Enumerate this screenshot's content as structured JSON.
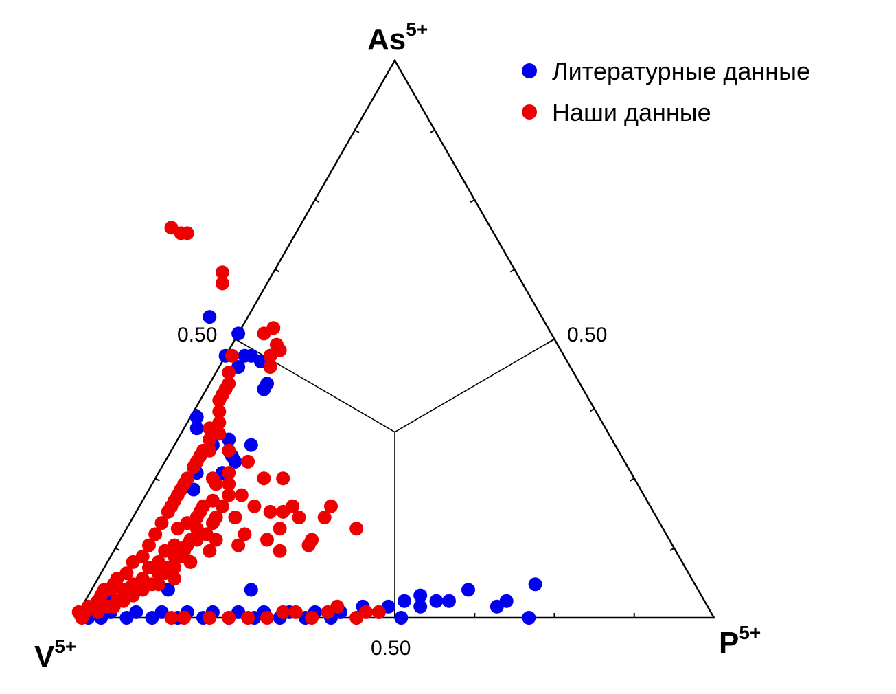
{
  "chart_data": {
    "type": "scatter",
    "subtype": "ternary",
    "title": "",
    "vertices": {
      "top": {
        "base": "As",
        "charge": "5+"
      },
      "left": {
        "base": "V",
        "charge": "5+"
      },
      "right": {
        "base": "P",
        "charge": "5+"
      }
    },
    "tick_labels": {
      "left_edge": "0.50",
      "right_edge": "0.50",
      "bottom_edge": "0.50"
    },
    "ticks_per_edge": 8,
    "grid": false,
    "boundary_lines": true,
    "legend_position": "top-right",
    "series": [
      {
        "name": "Литературные данные",
        "color": "#0000ee",
        "points": [
          [
            0.98,
            0.0
          ],
          [
            0.96,
            0.0
          ],
          [
            0.94,
            0.01
          ],
          [
            0.92,
            0.0
          ],
          [
            0.9,
            0.01
          ],
          [
            0.88,
            0.0
          ],
          [
            0.86,
            0.01
          ],
          [
            0.84,
            0.0
          ],
          [
            0.82,
            0.01
          ],
          [
            0.8,
            0.0
          ],
          [
            0.78,
            0.01
          ],
          [
            0.76,
            0.0
          ],
          [
            0.74,
            0.01
          ],
          [
            0.72,
            0.0
          ],
          [
            0.7,
            0.01
          ],
          [
            0.68,
            0.0
          ],
          [
            0.66,
            0.01
          ],
          [
            0.64,
            0.0
          ],
          [
            0.62,
            0.01
          ],
          [
            0.6,
            0.0
          ],
          [
            0.58,
            0.01
          ],
          [
            0.56,
            0.0
          ],
          [
            0.54,
            0.02
          ],
          [
            0.52,
            0.01
          ],
          [
            0.5,
            0.02
          ],
          [
            0.49,
            0.0
          ],
          [
            0.47,
            0.03
          ],
          [
            0.45,
            0.02
          ],
          [
            0.44,
            0.04
          ],
          [
            0.42,
            0.03
          ],
          [
            0.4,
            0.03
          ],
          [
            0.36,
            0.05
          ],
          [
            0.33,
            0.02
          ],
          [
            0.31,
            0.03
          ],
          [
            0.29,
            0.0
          ],
          [
            0.25,
            0.06
          ],
          [
            0.7,
            0.05
          ],
          [
            0.83,
            0.05
          ],
          [
            0.95,
            0.03
          ],
          [
            0.93,
            0.04
          ],
          [
            0.97,
            0.01
          ],
          [
            0.53,
            0.47
          ],
          [
            0.52,
            0.45
          ],
          [
            0.5,
            0.47
          ],
          [
            0.49,
            0.47
          ],
          [
            0.48,
            0.46
          ],
          [
            0.46,
            0.47
          ],
          [
            0.49,
            0.42
          ],
          [
            0.5,
            0.41
          ],
          [
            0.63,
            0.36
          ],
          [
            0.6,
            0.32
          ],
          [
            0.64,
            0.34
          ],
          [
            0.63,
            0.31
          ],
          [
            0.57,
            0.31
          ],
          [
            0.61,
            0.29
          ],
          [
            0.68,
            0.26
          ],
          [
            0.7,
            0.23
          ],
          [
            0.61,
            0.28
          ],
          [
            0.64,
            0.26
          ],
          [
            0.52,
            0.54
          ],
          [
            0.49,
            0.51
          ]
        ]
      },
      {
        "name": "Наши данные",
        "color": "#ee0000",
        "points": [
          [
            0.5,
            0.7
          ],
          [
            0.48,
            0.69
          ],
          [
            0.49,
            0.69
          ],
          [
            0.46,
            0.62
          ],
          [
            0.47,
            0.6
          ],
          [
            0.43,
            0.52
          ],
          [
            0.45,
            0.51
          ],
          [
            0.44,
            0.49
          ],
          [
            0.46,
            0.47
          ],
          [
            0.44,
            0.48
          ],
          [
            0.47,
            0.45
          ],
          [
            0.52,
            0.47
          ],
          [
            0.54,
            0.44
          ],
          [
            0.57,
            0.4
          ],
          [
            0.55,
            0.42
          ],
          [
            0.58,
            0.39
          ],
          [
            0.56,
            0.41
          ],
          [
            0.59,
            0.37
          ],
          [
            0.6,
            0.35
          ],
          [
            0.62,
            0.34
          ],
          [
            0.61,
            0.33
          ],
          [
            0.63,
            0.32
          ],
          [
            0.66,
            0.29
          ],
          [
            0.65,
            0.3
          ],
          [
            0.67,
            0.28
          ],
          [
            0.68,
            0.27
          ],
          [
            0.7,
            0.25
          ],
          [
            0.71,
            0.24
          ],
          [
            0.72,
            0.23
          ],
          [
            0.73,
            0.22
          ],
          [
            0.75,
            0.2
          ],
          [
            0.74,
            0.21
          ],
          [
            0.76,
            0.19
          ],
          [
            0.78,
            0.17
          ],
          [
            0.8,
            0.15
          ],
          [
            0.82,
            0.13
          ],
          [
            0.84,
            0.11
          ],
          [
            0.86,
            0.1
          ],
          [
            0.88,
            0.08
          ],
          [
            0.9,
            0.07
          ],
          [
            0.92,
            0.05
          ],
          [
            0.94,
            0.04
          ],
          [
            0.96,
            0.02
          ],
          [
            0.98,
            0.01
          ],
          [
            0.99,
            0.0
          ],
          [
            0.7,
            0.2
          ],
          [
            0.72,
            0.18
          ],
          [
            0.74,
            0.17
          ],
          [
            0.76,
            0.16
          ],
          [
            0.78,
            0.13
          ],
          [
            0.8,
            0.12
          ],
          [
            0.82,
            0.1
          ],
          [
            0.84,
            0.09
          ],
          [
            0.86,
            0.07
          ],
          [
            0.88,
            0.06
          ],
          [
            0.9,
            0.05
          ],
          [
            0.92,
            0.03
          ],
          [
            0.94,
            0.02
          ],
          [
            0.96,
            0.01
          ],
          [
            0.68,
            0.21
          ],
          [
            0.71,
            0.19
          ],
          [
            0.73,
            0.16
          ],
          [
            0.75,
            0.14
          ],
          [
            0.77,
            0.12
          ],
          [
            0.79,
            0.11
          ],
          [
            0.81,
            0.09
          ],
          [
            0.83,
            0.08
          ],
          [
            0.85,
            0.06
          ],
          [
            0.87,
            0.05
          ],
          [
            0.89,
            0.04
          ],
          [
            0.91,
            0.03
          ],
          [
            0.93,
            0.02
          ],
          [
            0.66,
            0.24
          ],
          [
            0.64,
            0.24
          ],
          [
            0.65,
            0.22
          ],
          [
            0.67,
            0.2
          ],
          [
            0.69,
            0.18
          ],
          [
            0.7,
            0.17
          ],
          [
            0.72,
            0.15
          ],
          [
            0.74,
            0.14
          ],
          [
            0.76,
            0.13
          ],
          [
            0.78,
            0.11
          ],
          [
            0.8,
            0.09
          ],
          [
            0.82,
            0.08
          ],
          [
            0.84,
            0.06
          ],
          [
            0.63,
            0.22
          ],
          [
            0.62,
            0.2
          ],
          [
            0.66,
            0.18
          ],
          [
            0.71,
            0.14
          ],
          [
            0.73,
            0.12
          ],
          [
            0.77,
            0.1
          ],
          [
            0.81,
            0.07
          ],
          [
            0.6,
            0.19
          ],
          [
            0.58,
            0.19
          ],
          [
            0.56,
            0.18
          ],
          [
            0.6,
            0.16
          ],
          [
            0.63,
            0.14
          ],
          [
            0.62,
            0.12
          ],
          [
            0.68,
            0.13
          ],
          [
            0.59,
            0.28
          ],
          [
            0.61,
            0.3
          ],
          [
            0.64,
            0.3
          ],
          [
            0.66,
            0.25
          ],
          [
            0.56,
            0.2
          ],
          [
            0.55,
            0.25
          ],
          [
            0.63,
            0.26
          ],
          [
            0.58,
            0.25
          ],
          [
            0.52,
            0.18
          ],
          [
            0.57,
            0.13
          ],
          [
            0.56,
            0.14
          ],
          [
            0.5,
            0.2
          ],
          [
            0.48,
            0.16
          ],
          [
            0.66,
            0.15
          ],
          [
            0.85,
            0.0
          ],
          [
            0.83,
            0.0
          ],
          [
            0.79,
            0.0
          ],
          [
            0.76,
            0.0
          ],
          [
            0.73,
            0.0
          ],
          [
            0.7,
            0.0
          ],
          [
            0.67,
            0.01
          ],
          [
            0.65,
            0.01
          ],
          [
            0.63,
            0.0
          ],
          [
            0.6,
            0.01
          ],
          [
            0.58,
            0.02
          ],
          [
            0.56,
            0.0
          ],
          [
            0.54,
            0.01
          ],
          [
            0.52,
            0.01
          ],
          [
            0.99,
            0.01
          ],
          [
            0.97,
            0.02
          ],
          [
            0.95,
            0.03
          ],
          [
            0.93,
            0.05
          ],
          [
            0.91,
            0.06
          ]
        ]
      }
    ]
  }
}
